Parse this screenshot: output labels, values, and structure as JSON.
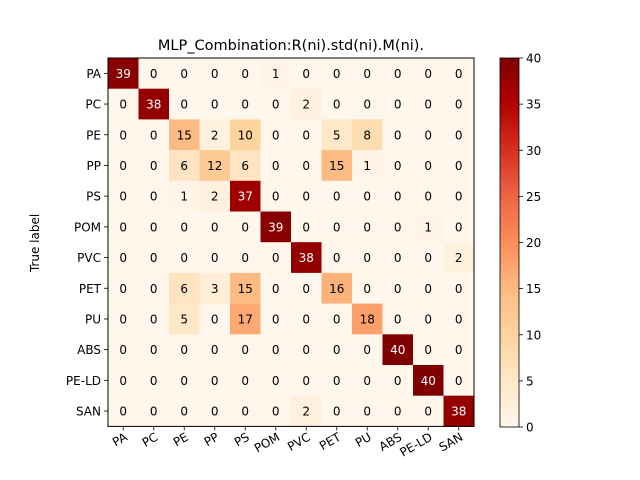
{
  "chart_data": {
    "type": "heatmap",
    "title": "MLP_Combination:R(ni).std(ni).M(ni).",
    "ylabel": "True label",
    "xlabel": "",
    "row_labels": [
      "PA",
      "PC",
      "PE",
      "PP",
      "PS",
      "POM",
      "PVC",
      "PET",
      "PU",
      "ABS",
      "PE-LD",
      "SAN"
    ],
    "col_labels": [
      "PA",
      "PC",
      "PE",
      "PP",
      "PS",
      "POM",
      "PVC",
      "PET",
      "PU",
      "ABS",
      "PE-LD",
      "SAN"
    ],
    "values": [
      [
        39,
        0,
        0,
        0,
        0,
        1,
        0,
        0,
        0,
        0,
        0,
        0
      ],
      [
        0,
        38,
        0,
        0,
        0,
        0,
        2,
        0,
        0,
        0,
        0,
        0
      ],
      [
        0,
        0,
        15,
        2,
        10,
        0,
        0,
        5,
        8,
        0,
        0,
        0
      ],
      [
        0,
        0,
        6,
        12,
        6,
        0,
        0,
        15,
        1,
        0,
        0,
        0
      ],
      [
        0,
        0,
        1,
        2,
        37,
        0,
        0,
        0,
        0,
        0,
        0,
        0
      ],
      [
        0,
        0,
        0,
        0,
        0,
        39,
        0,
        0,
        0,
        0,
        1,
        0
      ],
      [
        0,
        0,
        0,
        0,
        0,
        0,
        38,
        0,
        0,
        0,
        0,
        2
      ],
      [
        0,
        0,
        6,
        3,
        15,
        0,
        0,
        16,
        0,
        0,
        0,
        0
      ],
      [
        0,
        0,
        5,
        0,
        17,
        0,
        0,
        0,
        18,
        0,
        0,
        0
      ],
      [
        0,
        0,
        0,
        0,
        0,
        0,
        0,
        0,
        0,
        40,
        0,
        0
      ],
      [
        0,
        0,
        0,
        0,
        0,
        0,
        0,
        0,
        0,
        0,
        40,
        0
      ],
      [
        0,
        0,
        0,
        0,
        0,
        0,
        2,
        0,
        0,
        0,
        0,
        38
      ]
    ],
    "colorbar": {
      "min": 0,
      "max": 40,
      "ticks": [
        0,
        5,
        10,
        15,
        20,
        25,
        30,
        35,
        40
      ]
    },
    "colormap": "OrRd",
    "grid": false
  }
}
